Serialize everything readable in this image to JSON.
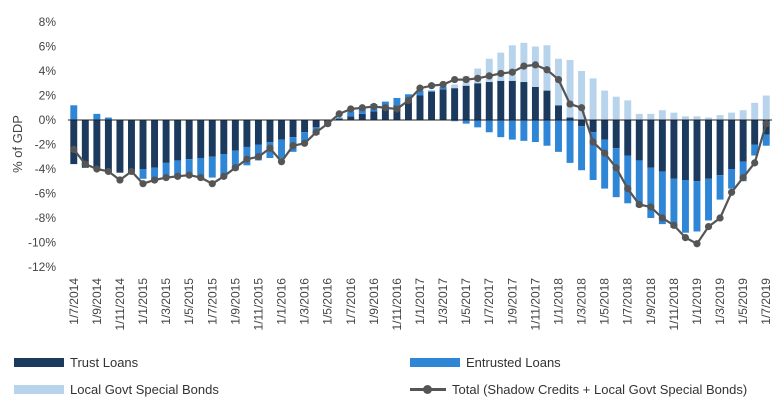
{
  "chart_data": {
    "type": "bar",
    "ylabel": "% of GDP",
    "ylim": [
      -12,
      8
    ],
    "yticks": [
      -12,
      -10,
      -8,
      -6,
      -4,
      -2,
      0,
      2,
      4,
      6,
      8
    ],
    "ytick_labels": [
      "-12%",
      "-10%",
      "-8%",
      "-6%",
      "-4%",
      "-2%",
      "0%",
      "2%",
      "4%",
      "6%",
      "8%"
    ],
    "x_tick_labels": [
      "1/7/2014",
      "1/9/2014",
      "1/11/2014",
      "1/1/2015",
      "1/3/2015",
      "1/5/2015",
      "1/7/2015",
      "1/9/2015",
      "1/11/2015",
      "1/1/2016",
      "1/3/2016",
      "1/5/2016",
      "1/7/2016",
      "1/9/2016",
      "1/11/2016",
      "1/1/2017",
      "1/3/2017",
      "1/5/2017",
      "1/7/2017",
      "1/9/2017",
      "1/11/2017",
      "1/1/2018",
      "1/3/2018",
      "1/5/2018",
      "1/7/2018",
      "1/9/2018",
      "1/11/2018",
      "1/1/2019",
      "1/3/2019",
      "1/5/2019",
      "1/7/2019"
    ],
    "months": [
      "2014-07",
      "2014-08",
      "2014-09",
      "2014-10",
      "2014-11",
      "2014-12",
      "2015-01",
      "2015-02",
      "2015-03",
      "2015-04",
      "2015-05",
      "2015-06",
      "2015-07",
      "2015-08",
      "2015-09",
      "2015-10",
      "2015-11",
      "2015-12",
      "2016-01",
      "2016-02",
      "2016-03",
      "2016-04",
      "2016-05",
      "2016-06",
      "2016-07",
      "2016-08",
      "2016-09",
      "2016-10",
      "2016-11",
      "2016-12",
      "2017-01",
      "2017-02",
      "2017-03",
      "2017-04",
      "2017-05",
      "2017-06",
      "2017-07",
      "2017-08",
      "2017-09",
      "2017-10",
      "2017-11",
      "2017-12",
      "2018-01",
      "2018-02",
      "2018-03",
      "2018-04",
      "2018-05",
      "2018-06",
      "2018-07",
      "2018-08",
      "2018-09",
      "2018-10",
      "2018-11",
      "2018-12",
      "2019-01",
      "2019-02",
      "2019-03",
      "2019-04",
      "2019-05",
      "2019-06",
      "2019-07"
    ],
    "stacked": true,
    "grid": false,
    "legend_position": "bottom",
    "series": [
      {
        "name": "Trust Loans",
        "type": "bar",
        "color": "#1b3a5e",
        "values": [
          -3.6,
          -3.9,
          -4.0,
          -4.2,
          -4.3,
          -4.1,
          -4.0,
          -3.9,
          -3.5,
          -3.3,
          -3.2,
          -3.1,
          -3.0,
          -2.8,
          -2.5,
          -2.2,
          -2.0,
          -1.8,
          -1.6,
          -1.4,
          -1.0,
          -0.6,
          -0.2,
          0.1,
          0.3,
          0.5,
          0.7,
          0.9,
          1.2,
          1.5,
          2.0,
          2.3,
          2.5,
          2.6,
          2.8,
          3.0,
          3.1,
          3.2,
          3.2,
          3.1,
          2.7,
          2.4,
          1.2,
          0.2,
          -0.5,
          -1.0,
          -1.6,
          -2.3,
          -2.9,
          -3.3,
          -3.9,
          -4.2,
          -4.8,
          -4.9,
          -5.0,
          -4.8,
          -4.5,
          -4.0,
          -3.4,
          -2.0,
          -1.2
        ]
      },
      {
        "name": "Entrusted Loans",
        "type": "bar",
        "color": "#2f86d6",
        "values": [
          1.2,
          0.0,
          0.5,
          0.2,
          0.0,
          -0.1,
          -0.8,
          -1.0,
          -1.2,
          -1.3,
          -1.4,
          -1.5,
          -1.7,
          -1.8,
          -1.6,
          -1.5,
          -1.3,
          -1.3,
          -1.5,
          -1.2,
          -0.9,
          -0.6,
          -0.3,
          0.1,
          0.4,
          0.5,
          0.6,
          0.6,
          0.6,
          0.6,
          0.4,
          0.1,
          0.2,
          -0.1,
          -0.3,
          -0.6,
          -1.0,
          -1.4,
          -1.6,
          -1.7,
          -1.8,
          -2.1,
          -2.6,
          -3.5,
          -3.6,
          -3.9,
          -4.0,
          -4.0,
          -3.9,
          -3.8,
          -4.1,
          -4.3,
          -4.0,
          -4.3,
          -4.1,
          -3.4,
          -2.0,
          -1.6,
          -1.6,
          -0.9,
          -0.9
        ]
      },
      {
        "name": "Local Govt Special Bonds",
        "type": "bar",
        "color": "#b8d3ec",
        "values": [
          0.0,
          0.0,
          0.0,
          0.0,
          0.0,
          0.0,
          0.0,
          0.0,
          0.0,
          0.0,
          0.0,
          0.0,
          0.0,
          0.0,
          0.0,
          0.0,
          0.0,
          0.0,
          0.0,
          0.0,
          0.0,
          0.0,
          0.0,
          0.0,
          0.0,
          0.0,
          0.0,
          0.0,
          0.0,
          0.0,
          0.0,
          0.0,
          0.1,
          0.3,
          0.8,
          1.2,
          1.9,
          2.3,
          2.9,
          3.2,
          3.3,
          3.7,
          3.8,
          4.7,
          4.0,
          3.4,
          2.4,
          1.9,
          1.6,
          0.5,
          0.5,
          0.8,
          0.6,
          0.3,
          0.3,
          0.2,
          0.4,
          0.6,
          0.8,
          1.4,
          2.0
        ]
      },
      {
        "name": "Total (Shadow Credits + Local Govt Special Bonds)",
        "type": "line",
        "color": "#555555",
        "values": [
          -2.4,
          -3.6,
          -4.0,
          -4.2,
          -4.9,
          -4.2,
          -5.2,
          -4.9,
          -4.7,
          -4.6,
          -4.5,
          -4.7,
          -5.2,
          -4.6,
          -3.9,
          -3.2,
          -3.0,
          -2.3,
          -3.4,
          -2.1,
          -1.9,
          -1.0,
          -0.3,
          0.5,
          0.9,
          1.0,
          1.1,
          1.0,
          0.9,
          1.6,
          2.6,
          2.8,
          2.9,
          3.3,
          3.3,
          3.4,
          3.6,
          3.8,
          3.9,
          4.4,
          4.5,
          4.1,
          3.3,
          1.3,
          1.0,
          -1.8,
          -2.7,
          -3.9,
          -5.6,
          -6.9,
          -7.1,
          -8.0,
          -8.6,
          -9.6,
          -10.1,
          -8.7,
          -8.0,
          -5.9,
          -4.7,
          -3.5,
          -0.3
        ]
      }
    ]
  }
}
